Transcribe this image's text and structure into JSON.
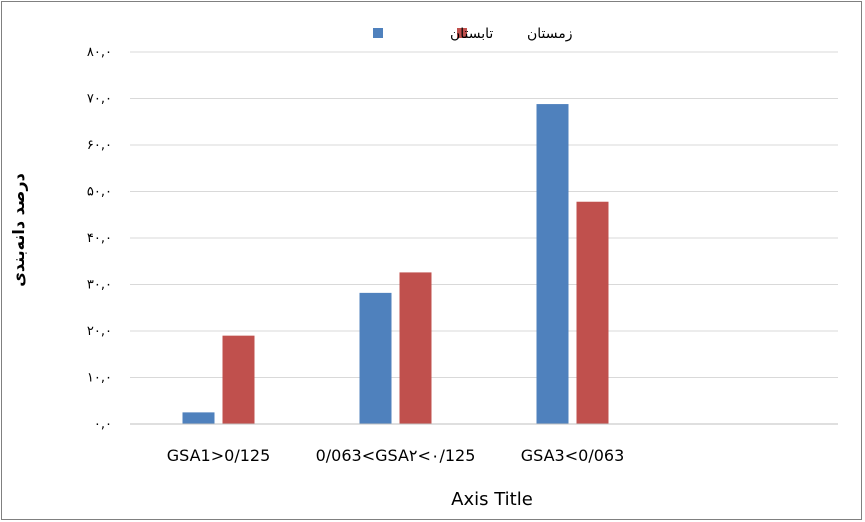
{
  "chart_data": {
    "type": "bar",
    "categories": [
      "GSA1>0/125",
      "0/063<GSA۲<۰/125",
      "GSA3<0/063"
    ],
    "series": [
      {
        "name": "تابستان",
        "color": "#4F81BD",
        "values": [
          2.5,
          28.2,
          68.8
        ]
      },
      {
        "name": "زمستان",
        "color": "#C0504D",
        "values": [
          19.0,
          32.6,
          47.8
        ]
      }
    ],
    "xlabel": "Axis Title",
    "ylabel": "درصد دانه‌بندی",
    "ylim": [
      0,
      80
    ],
    "yticks": [
      0,
      10,
      20,
      30,
      40,
      50,
      60,
      70,
      80
    ],
    "ytick_labels": [
      "۰,۰",
      "۱۰,۰",
      "۲۰,۰",
      "۳۰,۰",
      "۴۰,۰",
      "۵۰,۰",
      "۶۰,۰",
      "۷۰,۰",
      "۸۰,۰"
    ],
    "grid": true,
    "legend_position": "top-center"
  }
}
